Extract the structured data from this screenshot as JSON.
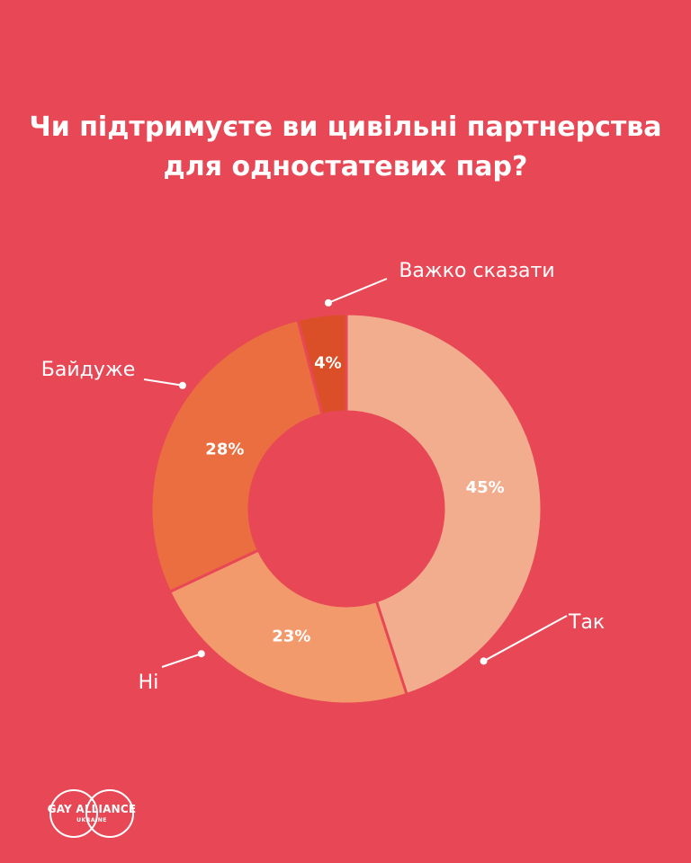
{
  "title_lines": [
    "Чи підтримуєте ви цивільні партнерства",
    "для одностатевих пар?"
  ],
  "chart_data": {
    "type": "pie",
    "title": "Чи підтримуєте ви цивільні партнерства для одностатевих пар?",
    "categories": [
      "Так",
      "Ні",
      "Байдуже",
      "Важко сказати"
    ],
    "values": [
      45,
      23,
      28,
      4
    ],
    "value_labels": [
      "45%",
      "23%",
      "28%",
      "4%"
    ],
    "colors": [
      "#F2AD8F",
      "#F29A6C",
      "#EA6E3F",
      "#DA4E28"
    ],
    "donut": true
  },
  "logo": {
    "main": "GAY ALLIANCE",
    "sub": "UKRAINE"
  }
}
